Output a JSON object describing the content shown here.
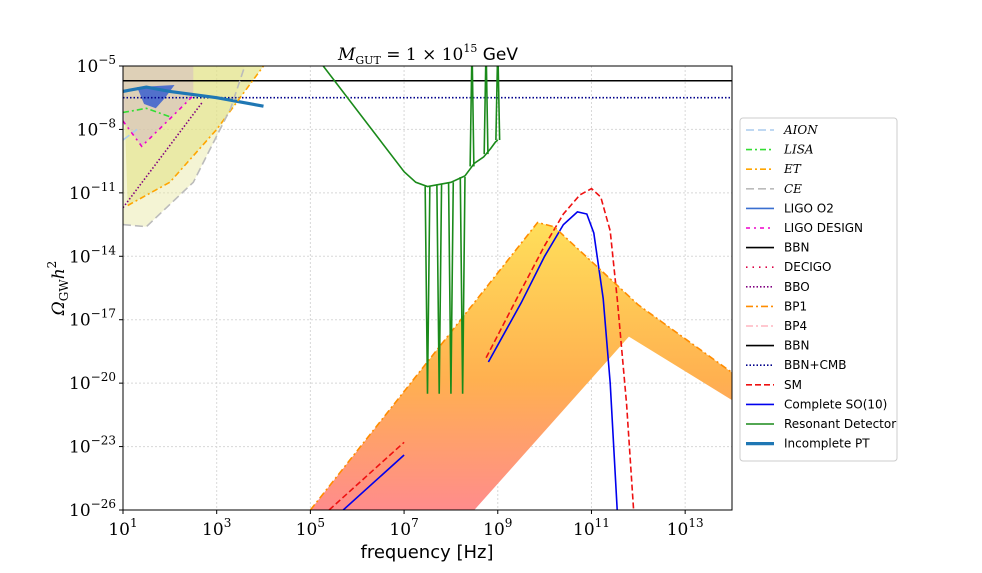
{
  "chart_data": {
    "type": "line",
    "title": "M_GUT = 1 × 10^15 GeV",
    "title_parts": {
      "symbol": "M",
      "subscript": "GUT",
      "rest": " = 1 × 10",
      "exponent": "15",
      "unit": " GeV"
    },
    "xlabel": "frequency [Hz]",
    "ylabel": "Ω_GW h²",
    "ylabel_parts": {
      "symbol": "Ω",
      "subscript": "GW",
      "h": "h",
      "exponent": "2"
    },
    "x_scale": "log",
    "y_scale": "log",
    "xlim": [
      1,
      14
    ],
    "ylim": [
      -26,
      -5
    ],
    "xticks": [
      {
        "exp": 1,
        "label": "10",
        "sup": "1"
      },
      {
        "exp": 3,
        "label": "10",
        "sup": "3"
      },
      {
        "exp": 5,
        "label": "10",
        "sup": "5"
      },
      {
        "exp": 7,
        "label": "10",
        "sup": "7"
      },
      {
        "exp": 9,
        "label": "10",
        "sup": "9"
      },
      {
        "exp": 11,
        "label": "10",
        "sup": "11"
      },
      {
        "exp": 13,
        "label": "10",
        "sup": "13"
      }
    ],
    "yticks": [
      {
        "exp": -5,
        "label": "10",
        "sup": "−5"
      },
      {
        "exp": -8,
        "label": "10",
        "sup": "−8"
      },
      {
        "exp": -11,
        "label": "10",
        "sup": "−11"
      },
      {
        "exp": -14,
        "label": "10",
        "sup": "−14"
      },
      {
        "exp": -17,
        "label": "10",
        "sup": "−17"
      },
      {
        "exp": -20,
        "label": "10",
        "sup": "−20"
      },
      {
        "exp": -23,
        "label": "10",
        "sup": "−23"
      },
      {
        "exp": -26,
        "label": "10",
        "sup": "−26"
      }
    ],
    "grid": true,
    "legend_position": "right",
    "legend": [
      {
        "label": "AION",
        "italic": true,
        "color": "#aaccee",
        "dash": "8,4"
      },
      {
        "label": "LISA",
        "italic": true,
        "color": "#33dd33",
        "dash": "6,3,2,3"
      },
      {
        "label": "ET",
        "italic": true,
        "color": "#ffa500",
        "dash": "6,3,2,3"
      },
      {
        "label": "CE",
        "italic": true,
        "color": "#bbbbbb",
        "dash": "8,4"
      },
      {
        "label": "LIGO O2",
        "italic": false,
        "color": "#3a6fd0",
        "dash": ""
      },
      {
        "label": "LIGO DESIGN",
        "italic": false,
        "color": "#ee00cc",
        "dash": "4,4,2,4"
      },
      {
        "label": "BBN",
        "italic": false,
        "color": "#000000",
        "dash": ""
      },
      {
        "label": "DECIGO",
        "italic": false,
        "color": "#dd0044",
        "dash": "1.5,5"
      },
      {
        "label": "BBO",
        "italic": false,
        "color": "#800080",
        "dash": "1.5,2"
      },
      {
        "label": "BP1",
        "italic": false,
        "color": "#ff8c00",
        "dash": "7,3,2,3"
      },
      {
        "label": "BP4",
        "italic": false,
        "color": "#ffb6c1",
        "dash": "7,3,2,3"
      },
      {
        "label": "BBN",
        "italic": false,
        "color": "#000000",
        "dash": ""
      },
      {
        "label": "BBN+CMB",
        "italic": false,
        "color": "#00008b",
        "dash": "1.5,2"
      },
      {
        "label": "SM",
        "italic": false,
        "color": "#ee1111",
        "dash": "6,3"
      },
      {
        "label": "Complete SO(10)",
        "italic": false,
        "color": "#0000ee",
        "dash": ""
      },
      {
        "label": "Resonant Detector",
        "italic": false,
        "color": "#1a8a1a",
        "dash": ""
      },
      {
        "label": "Incomplete PT",
        "italic": false,
        "color": "#1f77b4",
        "dash": "",
        "thick": true
      }
    ],
    "series": [
      {
        "name": "BBN",
        "color": "#000000",
        "points": [
          [
            1,
            -5.7
          ],
          [
            14,
            -5.7
          ]
        ]
      },
      {
        "name": "BBN+CMB",
        "color": "#00008b",
        "points": [
          [
            1,
            -6.5
          ],
          [
            14,
            -6.5
          ]
        ]
      },
      {
        "name": "Resonant Detector",
        "color": "#1a8a1a",
        "points": [
          [
            5.1,
            -4.5
          ],
          [
            7.0,
            -10.0
          ],
          [
            7.25,
            -10.5
          ],
          [
            7.5,
            -10.7
          ],
          [
            8.0,
            -10.5
          ],
          [
            8.3,
            -10.2
          ],
          [
            8.5,
            -9.6
          ],
          [
            8.7,
            -9.3
          ],
          [
            8.85,
            -8.9
          ],
          [
            8.95,
            -8.6
          ],
          [
            9.0,
            -8.5
          ]
        ]
      },
      {
        "name": "Resonant Detector dips",
        "color": "#1a8a1a",
        "points_x": [
          7.5,
          7.75,
          8.0,
          8.25
        ],
        "dip_to": -20.5
      },
      {
        "name": "Resonant Detector spikes",
        "color": "#1a8a1a",
        "points_x": [
          8.45,
          8.75,
          9.0
        ],
        "spike_to": -4.0
      },
      {
        "name": "SM",
        "color": "#ee1111",
        "points": [
          [
            8.75,
            -18.8
          ],
          [
            9.5,
            -15.6
          ],
          [
            10.0,
            -13.5
          ],
          [
            10.4,
            -12.0
          ],
          [
            10.75,
            -11.1
          ],
          [
            11.0,
            -10.8
          ],
          [
            11.2,
            -11.2
          ],
          [
            11.4,
            -12.8
          ],
          [
            11.55,
            -16.0
          ],
          [
            11.75,
            -21.0
          ],
          [
            11.9,
            -26.0
          ]
        ]
      },
      {
        "name": "Complete SO(10)",
        "color": "#0000ee",
        "points": [
          [
            8.8,
            -19.0
          ],
          [
            9.5,
            -16.2
          ],
          [
            10.0,
            -14.0
          ],
          [
            10.4,
            -12.5
          ],
          [
            10.7,
            -11.9
          ],
          [
            10.9,
            -12.0
          ],
          [
            11.05,
            -12.9
          ],
          [
            11.25,
            -16.0
          ],
          [
            11.4,
            -20.0
          ],
          [
            11.55,
            -26.0
          ]
        ]
      },
      {
        "name": "SM low-f",
        "color": "#ee1111",
        "points": [
          [
            5.4,
            -26.0
          ],
          [
            7.0,
            -22.8
          ]
        ]
      },
      {
        "name": "Complete SO(10) low-f",
        "color": "#0000ee",
        "points": [
          [
            5.7,
            -26.0
          ],
          [
            7.0,
            -23.4
          ]
        ]
      },
      {
        "name": "BP1",
        "color": "#ff8c00",
        "points": [
          [
            5.0,
            -26.0
          ],
          [
            9.85,
            -12.4
          ],
          [
            10.2,
            -12.6
          ],
          [
            12.0,
            -16.3
          ],
          [
            14.0,
            -19.5
          ]
        ]
      },
      {
        "name": "BP4",
        "color": "#ffb6c1",
        "points": [
          [
            8.5,
            -26.0
          ],
          [
            11.8,
            -17.8
          ],
          [
            14.0,
            -20.8
          ]
        ]
      },
      {
        "name": "Incomplete PT",
        "color": "#1f77b4",
        "points": [
          [
            1.0,
            -6.2
          ],
          [
            1.5,
            -6.0
          ],
          [
            2.0,
            -6.2
          ],
          [
            3.0,
            -6.5
          ],
          [
            4.0,
            -6.9
          ]
        ]
      },
      {
        "name": "LIGO DESIGN",
        "color": "#ee00cc",
        "points": [
          [
            1.0,
            -7.6
          ],
          [
            1.4,
            -8.8
          ],
          [
            2.0,
            -7.5
          ],
          [
            2.5,
            -6.4
          ]
        ]
      },
      {
        "name": "BBO",
        "color": "#800080",
        "points": [
          [
            1.0,
            -11.7
          ],
          [
            2.7,
            -6.7
          ]
        ]
      },
      {
        "name": "ET",
        "color": "#ffa500",
        "points": [
          [
            1.1,
            -11.6
          ],
          [
            2.0,
            -10.5
          ],
          [
            3.0,
            -8.0
          ],
          [
            4.0,
            -5.0
          ]
        ]
      },
      {
        "name": "CE",
        "color": "#bbbbbb",
        "points": [
          [
            1.0,
            -12.5
          ],
          [
            1.5,
            -12.6
          ],
          [
            2.5,
            -10.5
          ],
          [
            3.3,
            -7.0
          ],
          [
            3.6,
            -5.0
          ]
        ]
      },
      {
        "name": "LISA",
        "color": "#33dd33",
        "points": [
          [
            1.0,
            -7.2
          ],
          [
            1.5,
            -7.0
          ],
          [
            2.0,
            -7.4
          ]
        ]
      },
      {
        "name": "LIGO O2",
        "color": "#3a6fd0",
        "points": [
          [
            1.4,
            -5.8
          ],
          [
            2.1,
            -5.8
          ]
        ]
      },
      {
        "name": "AION",
        "color": "#aaccee",
        "points": [
          [
            1.0,
            -8.5
          ],
          [
            1.3,
            -8.0
          ]
        ]
      }
    ]
  }
}
